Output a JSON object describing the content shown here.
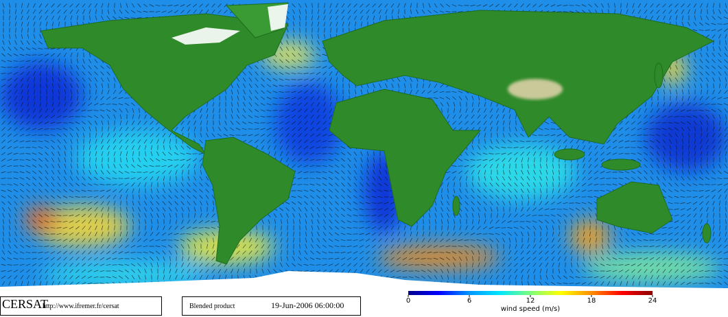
{
  "logo": "CERSAT",
  "url": "http://www.ifremer.fr/cersat",
  "product": "Blended product",
  "datetime": "19-Jun-2006 06:00:00",
  "colorbar": {
    "label": "wind speed (m/s)",
    "lim": [
      0,
      24
    ],
    "ticks": [
      0,
      6,
      12,
      18,
      24
    ],
    "colors": [
      "#00008b",
      "#0000ff",
      "#0096ff",
      "#00e5ff",
      "#7cff7a",
      "#ffff00",
      "#ff8c00",
      "#ff0000",
      "#8b0000"
    ]
  }
}
